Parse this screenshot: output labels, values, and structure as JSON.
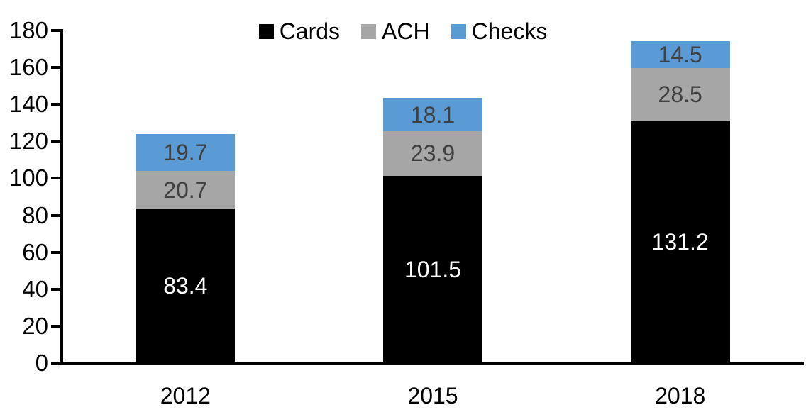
{
  "chart_data": {
    "type": "bar",
    "stacked": true,
    "title": "",
    "xlabel": "",
    "ylabel": "",
    "categories": [
      "2012",
      "2015",
      "2018"
    ],
    "series": [
      {
        "name": "Cards",
        "color": "#000000",
        "label_color": "#ffffff",
        "values": [
          83.4,
          101.5,
          131.2
        ]
      },
      {
        "name": "ACH",
        "color": "#a6a6a6",
        "label_color": "#404040",
        "values": [
          20.7,
          23.9,
          28.5
        ]
      },
      {
        "name": "Checks",
        "color": "#5b9bd5",
        "label_color": "#404040",
        "values": [
          19.7,
          18.1,
          14.5
        ]
      }
    ],
    "totals": [
      123.8,
      143.5,
      174.2
    ],
    "ylim": [
      0,
      180
    ],
    "y_ticks": [
      0,
      20,
      40,
      60,
      80,
      100,
      120,
      140,
      160,
      180
    ],
    "grid": false,
    "legend_position": "top-center",
    "axis_color": "#000000"
  }
}
